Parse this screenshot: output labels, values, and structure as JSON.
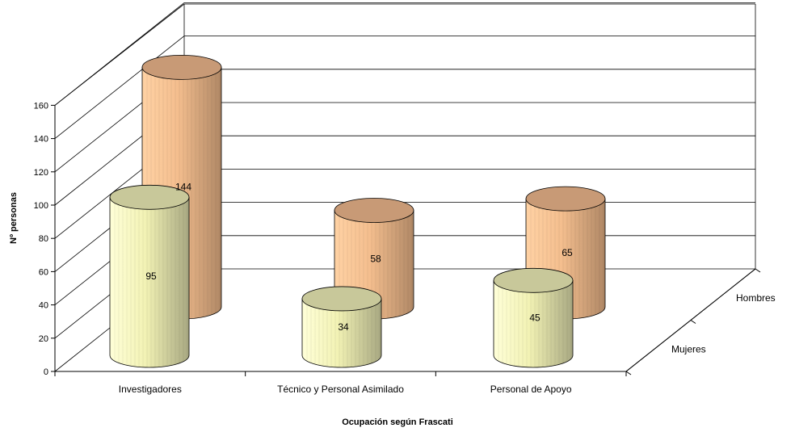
{
  "chart_data": {
    "type": "bar",
    "style": "3d-cylinder",
    "categories": [
      "Investigadores",
      "Técnico y Personal Asimilado",
      "Personal de Apoyo"
    ],
    "series": [
      {
        "name": "Mujeres",
        "values": [
          95,
          34,
          45
        ],
        "color": "#FFFFCC"
      },
      {
        "name": "Hombres",
        "values": [
          144,
          58,
          65
        ],
        "color": "#FFCC99"
      }
    ],
    "yticks": [
      0,
      20,
      40,
      60,
      80,
      100,
      120,
      140,
      160
    ],
    "ylim": [
      0,
      160
    ],
    "xlabel": "Ocupación según Frascati",
    "ylabel": "Nº personas",
    "grid": true
  }
}
